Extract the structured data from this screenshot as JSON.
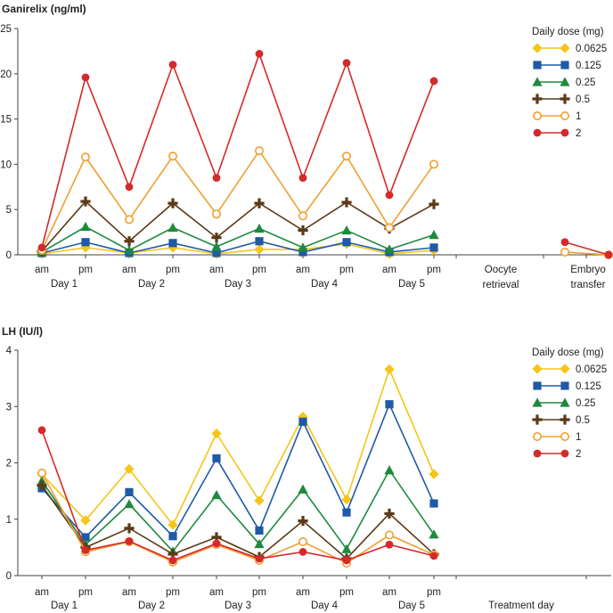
{
  "chart_data": [
    {
      "type": "line",
      "title": "",
      "ylabel": "Ganirelix (ng/ml)",
      "xlabel": "",
      "ylim": [
        0,
        25
      ],
      "yticks": [
        0,
        5,
        10,
        15,
        20,
        25
      ],
      "time_labels": [
        "am",
        "pm",
        "am",
        "pm",
        "am",
        "pm",
        "am",
        "pm",
        "am",
        "pm"
      ],
      "day_labels": [
        "Day 1",
        "Day 2",
        "Day 3",
        "Day 4",
        "Day 5"
      ],
      "extra_labels": [
        {
          "line1": "Oocyte",
          "line2": "retrieval"
        },
        {
          "line1": "Embryo",
          "line2": "transfer"
        }
      ],
      "legend_title": "Daily dose (mg)",
      "series": [
        {
          "name": "0.0625",
          "color": "#F5C518",
          "marker": "diamond",
          "values": [
            0.1,
            0.8,
            0.2,
            0.8,
            0.1,
            0.6,
            0.6,
            1.2,
            0.1,
            0.5
          ],
          "tail": []
        },
        {
          "name": "0.125",
          "color": "#1F5AA6",
          "marker": "square",
          "values": [
            0.2,
            1.4,
            0.2,
            1.3,
            0.2,
            1.5,
            0.3,
            1.4,
            0.3,
            0.8
          ],
          "tail": []
        },
        {
          "name": "0.25",
          "color": "#1E8A3C",
          "marker": "triangle",
          "values": [
            0.3,
            3.1,
            0.5,
            3.0,
            0.9,
            2.9,
            0.8,
            2.7,
            0.6,
            2.2
          ],
          "tail": []
        },
        {
          "name": "0.5",
          "color": "#5B3A18",
          "marker": "plus",
          "values": [
            0.4,
            5.9,
            1.5,
            5.7,
            1.9,
            5.7,
            2.7,
            5.8,
            2.9,
            5.6
          ],
          "tail": []
        },
        {
          "name": "1",
          "color": "#F0A030",
          "marker": "open-circle",
          "values": [
            0.5,
            10.8,
            3.9,
            10.9,
            4.5,
            11.5,
            4.3,
            10.9,
            3.0,
            10.0
          ],
          "tail": [
            0.3,
            0.0
          ]
        },
        {
          "name": "2",
          "color": "#D42A2A",
          "marker": "circle",
          "values": [
            0.8,
            19.6,
            7.5,
            21.0,
            8.5,
            22.2,
            8.5,
            21.2,
            6.6,
            19.2
          ],
          "tail": [
            1.4,
            0.0
          ]
        }
      ]
    },
    {
      "type": "line",
      "title": "",
      "ylabel": "LH (IU/l)",
      "xlabel": "",
      "ylim": [
        0,
        4
      ],
      "yticks": [
        0,
        1,
        2,
        3,
        4
      ],
      "time_labels": [
        "am",
        "pm",
        "am",
        "pm",
        "am",
        "pm",
        "am",
        "pm",
        "am",
        "pm"
      ],
      "day_labels": [
        "Day 1",
        "Day 2",
        "Day 3",
        "Day 4",
        "Day 5"
      ],
      "extra_labels": [
        {
          "line1": "Treatment day",
          "line2": ""
        }
      ],
      "legend_title": "Daily dose (mg)",
      "series": [
        {
          "name": "0.0625",
          "color": "#F5C518",
          "marker": "diamond",
          "values": [
            1.8,
            0.98,
            1.89,
            0.9,
            2.52,
            1.33,
            2.82,
            1.35,
            3.66,
            1.8
          ],
          "tail": []
        },
        {
          "name": "0.125",
          "color": "#1F5AA6",
          "marker": "square",
          "values": [
            1.55,
            0.68,
            1.48,
            0.7,
            2.08,
            0.8,
            2.73,
            1.12,
            3.04,
            1.28
          ],
          "tail": []
        },
        {
          "name": "0.25",
          "color": "#1E8A3C",
          "marker": "triangle",
          "values": [
            1.68,
            0.55,
            1.27,
            0.43,
            1.43,
            0.56,
            1.53,
            0.47,
            1.87,
            0.73
          ],
          "tail": []
        },
        {
          "name": "0.5",
          "color": "#5B3A18",
          "marker": "plus",
          "values": [
            1.6,
            0.5,
            0.84,
            0.38,
            0.68,
            0.33,
            0.97,
            0.3,
            1.1,
            0.38
          ],
          "tail": []
        },
        {
          "name": "1",
          "color": "#F0A030",
          "marker": "open-circle",
          "values": [
            1.82,
            0.42,
            0.6,
            0.24,
            0.55,
            0.27,
            0.6,
            0.22,
            0.72,
            0.37
          ],
          "tail": []
        },
        {
          "name": "2",
          "color": "#D42A2A",
          "marker": "circle",
          "values": [
            2.58,
            0.45,
            0.61,
            0.27,
            0.57,
            0.3,
            0.42,
            0.27,
            0.55,
            0.35
          ],
          "tail": []
        }
      ]
    }
  ]
}
